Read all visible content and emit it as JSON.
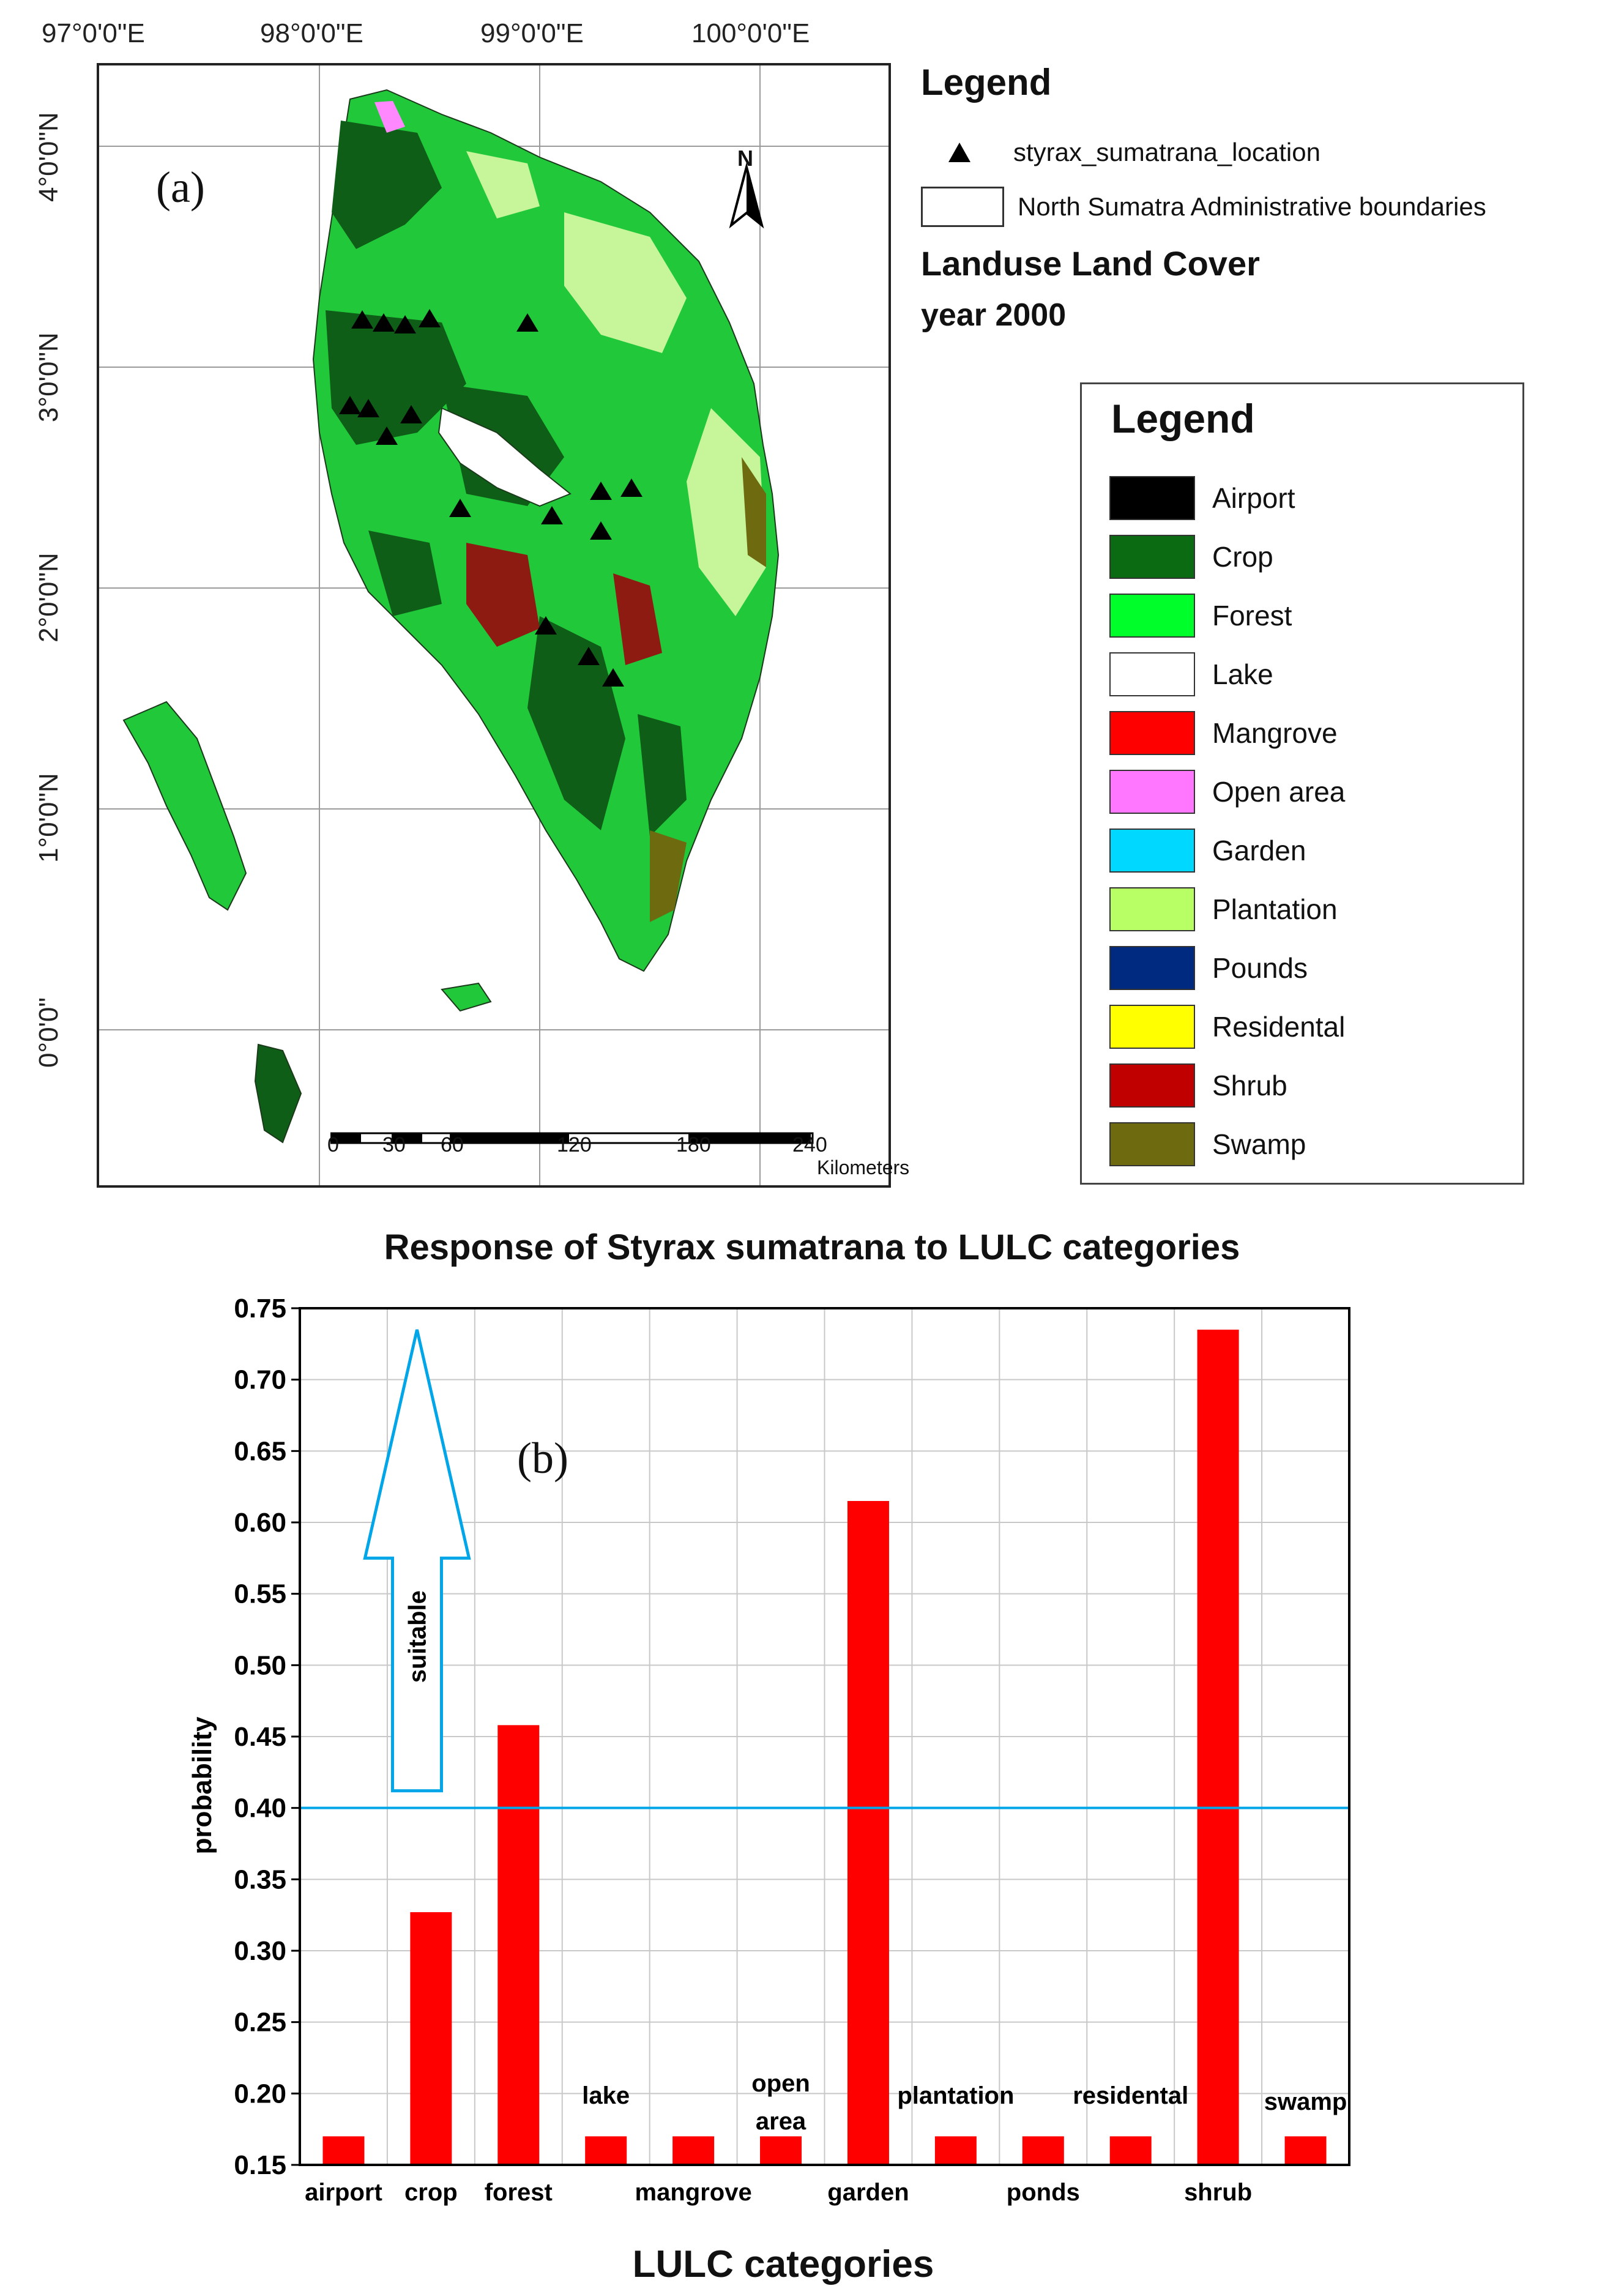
{
  "map": {
    "panel_label": "(a)",
    "lon_labels": [
      "97°0'0\"E",
      "98°0'0\"E",
      "99°0'0\"E",
      "100°0'0\"E"
    ],
    "lat_labels": [
      "4°0'0\"N",
      "3°0'0\"N",
      "2°0'0\"N",
      "1°0'0\"N",
      "0°0'0\""
    ],
    "north_label": "N",
    "scale_ticks": [
      "0",
      "30",
      "60",
      "120",
      "180",
      "240"
    ],
    "scale_units": "Kilometers",
    "legend": {
      "title": "Legend",
      "location_label": "styrax_sumatrana_location",
      "boundary_label": "North Sumatra Administrative boundaries",
      "lulc_title": "Landuse Land Cover",
      "lulc_year": "year 2000"
    },
    "class_legend": {
      "title": "Legend",
      "items": [
        {
          "label": "Airport",
          "color": "#000000"
        },
        {
          "label": "Crop",
          "color": "#0a6b12"
        },
        {
          "label": "Forest",
          "color": "#00ff2a"
        },
        {
          "label": "Lake",
          "color": "#ffffff"
        },
        {
          "label": "Mangrove",
          "color": "#ff0000"
        },
        {
          "label": "Open area",
          "color": "#ff77ff"
        },
        {
          "label": "Garden",
          "color": "#00d8ff"
        },
        {
          "label": "Plantation",
          "color": "#b8ff66"
        },
        {
          "label": "Pounds",
          "color": "#002a80"
        },
        {
          "label": "Residental",
          "color": "#ffff00"
        },
        {
          "label": "Shrub",
          "color": "#c00000"
        },
        {
          "label": "Swamp",
          "color": "#6e6a10"
        }
      ]
    }
  },
  "chart_data": {
    "type": "bar",
    "panel_label": "(b)",
    "title": "Response of Styrax sumatrana to LULC categories",
    "xlabel": "LULC categories",
    "ylabel": "probability",
    "categories": [
      "airport",
      "crop",
      "forest",
      "lake",
      "mangrove",
      "open area",
      "garden",
      "plantation",
      "ponds",
      "residental",
      "shrub",
      "swamp"
    ],
    "values": [
      0.17,
      0.327,
      0.458,
      0.17,
      0.17,
      0.17,
      0.615,
      0.17,
      0.17,
      0.17,
      0.735,
      0.17
    ],
    "ylim": [
      0.15,
      0.75
    ],
    "yticks": [
      "0.15",
      "0.20",
      "0.25",
      "0.30",
      "0.35",
      "0.40",
      "0.45",
      "0.50",
      "0.55",
      "0.60",
      "0.65",
      "0.70",
      "0.75"
    ],
    "threshold": 0.4,
    "annotation": "suitable",
    "bar_color": "#ff0000",
    "threshold_color": "#00a6e8",
    "grid": true
  }
}
